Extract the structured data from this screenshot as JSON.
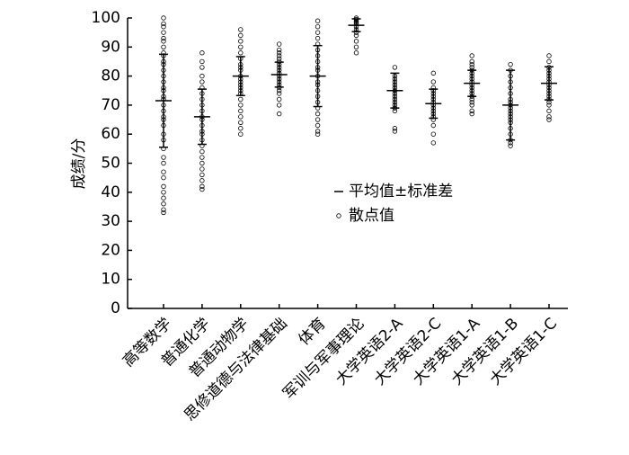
{
  "chart_data": {
    "type": "errorbar",
    "ylabel": "成绩/分",
    "categories": [
      "高等数学",
      "普通化学",
      "普通动物学",
      "思修道德与法律基础",
      "体育",
      "军训与军事理论",
      "大学英语2-A",
      "大学英语2-C",
      "大学英语1-A",
      "大学英语1-B",
      "大学英语1-C"
    ],
    "ylim": [
      0,
      100
    ],
    "yticks": [
      0,
      10,
      20,
      30,
      40,
      50,
      60,
      70,
      80,
      90,
      100
    ],
    "series": [
      {
        "name": "平均值±标准差",
        "color": "#000000",
        "values": [
          71.5,
          66,
          80,
          80.5,
          80,
          97.5,
          75,
          70.5,
          77.5,
          70,
          77.5
        ],
        "errors": [
          16,
          9.5,
          6.7,
          4.3,
          10.5,
          2.2,
          6,
          5,
          4.5,
          12,
          5.7
        ]
      },
      {
        "name": "散点值",
        "color": "#000000",
        "values": [
          [
            100,
            98,
            97,
            95,
            93,
            92,
            90,
            88,
            87,
            85,
            84,
            82,
            80,
            78,
            76,
            75,
            73,
            72,
            70,
            68,
            66,
            65,
            63,
            60,
            58,
            55,
            52,
            50,
            47,
            45,
            42,
            40,
            38,
            36,
            34,
            33
          ],
          [
            88,
            85,
            83,
            80,
            78,
            76,
            74,
            72,
            70,
            68,
            66,
            65,
            63,
            61,
            60,
            58,
            56,
            54,
            52,
            50,
            48,
            46,
            44,
            42,
            41
          ],
          [
            96,
            94,
            92,
            90,
            88,
            86,
            84,
            83,
            82,
            80,
            79,
            78,
            77,
            76,
            75,
            74,
            72,
            70,
            68,
            66,
            64,
            62,
            60
          ],
          [
            91,
            89,
            88,
            87,
            86,
            85,
            84,
            83,
            82,
            81,
            80,
            79,
            78,
            77,
            76,
            75,
            74,
            72,
            70,
            67
          ],
          [
            99,
            97,
            95,
            93,
            91,
            89,
            87,
            85,
            83,
            82,
            80,
            78,
            77,
            75,
            73,
            71,
            69,
            67,
            65,
            63,
            61,
            60
          ],
          [
            100,
            99.5,
            99,
            98.5,
            98,
            97,
            96,
            95,
            94,
            92,
            90,
            88
          ],
          [
            83,
            80,
            79,
            78,
            77,
            76,
            75,
            74,
            73,
            72,
            71,
            70,
            69,
            68,
            62,
            61
          ],
          [
            81,
            78,
            76,
            75,
            74,
            73,
            72,
            71,
            70,
            69,
            68,
            67,
            66,
            65,
            63,
            60,
            57
          ],
          [
            87,
            85,
            84,
            83,
            82,
            81,
            80,
            79,
            78,
            77,
            76,
            75,
            74,
            73,
            72,
            71,
            70,
            68,
            67
          ],
          [
            84,
            82,
            80,
            78,
            76,
            74,
            72,
            71,
            70,
            69,
            68,
            67,
            66,
            65,
            64,
            62,
            60,
            58,
            57,
            56
          ],
          [
            87,
            85,
            83,
            82,
            81,
            80,
            79,
            78,
            77,
            76,
            75,
            74,
            73,
            72,
            71,
            70,
            68,
            66,
            65
          ]
        ]
      }
    ]
  }
}
